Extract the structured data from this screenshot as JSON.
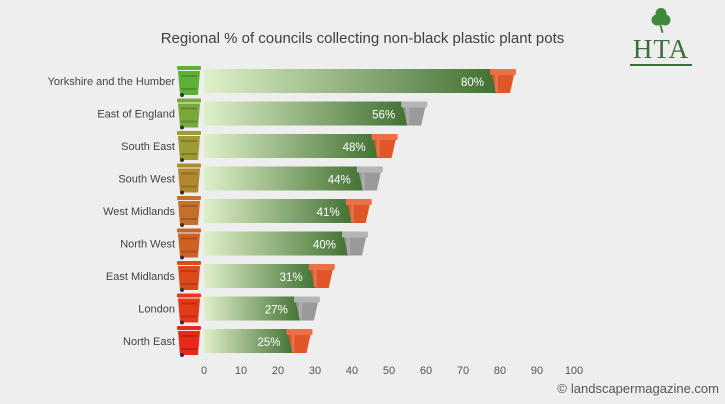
{
  "chart_data": {
    "type": "bar",
    "orientation": "horizontal",
    "title": "Regional % of councils collecting non-black plastic plant pots",
    "categories": [
      "Yorkshire and the Humber",
      "East of England",
      "South East",
      "South West",
      "West Midlands",
      "North West",
      "East Midlands",
      "London",
      "North East"
    ],
    "values": [
      80,
      56,
      48,
      44,
      41,
      40,
      31,
      27,
      25
    ],
    "value_labels": [
      "80%",
      "56%",
      "48%",
      "44%",
      "41%",
      "40%",
      "31%",
      "27%",
      "25%"
    ],
    "xlim": [
      0,
      100
    ],
    "xticks": [
      "0",
      "10",
      "20",
      "30",
      "40",
      "50",
      "60",
      "70",
      "80",
      "90",
      "100"
    ],
    "xlabel": "",
    "ylabel": "",
    "grid": false,
    "legend": "none",
    "bin_colors": [
      "#5fb135",
      "#79a93a",
      "#9e9a35",
      "#b0892e",
      "#c3702a",
      "#cf6222",
      "#dc4a1b",
      "#e53a16",
      "#e8291a"
    ],
    "pot_types": [
      "terracotta",
      "grey",
      "terracotta",
      "grey",
      "terracotta",
      "grey",
      "terracotta",
      "grey",
      "terracotta"
    ],
    "colors": {
      "bar_start": "#dff0c9",
      "bar_end": "#3f6f2f",
      "terracotta": "#e0562a",
      "grey": "#9a9a9a"
    }
  },
  "logo": {
    "text": "HTA",
    "icon": "shamrock-icon"
  },
  "watermark": {
    "text": "landscapermagazine.com",
    "icon": "copyright-icon"
  }
}
